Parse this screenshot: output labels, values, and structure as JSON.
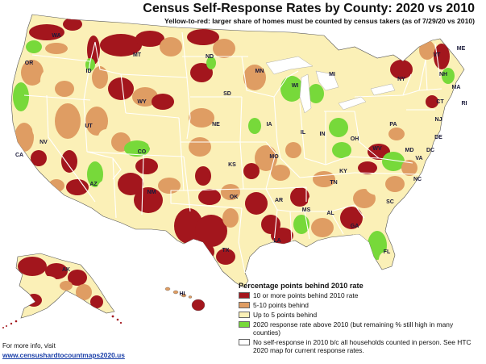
{
  "title": "Census Self-Response Rates by County: 2020 vs 2010",
  "subtitle": "Yellow-to-red: larger share of homes must be counted by census takers (as of 7/29/20 vs 2010)",
  "colors": {
    "red": "#a3161d",
    "orange": "#df9d63",
    "yellow": "#fbf0b7",
    "green": "#77d93a",
    "white": "#ffffff",
    "state_border": "#ffffff",
    "water": "#ffffff"
  },
  "legend": {
    "title": "Percentage points behind 2010 rate",
    "items": [
      {
        "color": "#a3161d",
        "label": "10 or more points behind 2010 rate"
      },
      {
        "color": "#df9d63",
        "label": "5-10 points behind"
      },
      {
        "color": "#fbf0b7",
        "label": "Up to 5 points behind"
      },
      {
        "color": "#77d93a",
        "label": "2020 response rate above 2010 (but remaining % still high in many counties)"
      },
      {
        "color": "#ffffff",
        "label": "No self-response in 2010 b/c all households counted in person. See HTC 2020 map for current response rates."
      }
    ]
  },
  "states": [
    "WA",
    "OR",
    "CA",
    "NV",
    "ID",
    "MT",
    "WY",
    "UT",
    "AZ",
    "CO",
    "NM",
    "ND",
    "SD",
    "NE",
    "KS",
    "OK",
    "TX",
    "MN",
    "IA",
    "MO",
    "AR",
    "LA",
    "WI",
    "IL",
    "MI",
    "IN",
    "OH",
    "KY",
    "TN",
    "MS",
    "AL",
    "GA",
    "FL",
    "SC",
    "NC",
    "VA",
    "WV",
    "PA",
    "NY",
    "VT",
    "NH",
    "ME",
    "MA",
    "RI",
    "CT",
    "NJ",
    "DE",
    "MD",
    "DC",
    "AK",
    "HI"
  ],
  "footer": {
    "info": "For more info, visit",
    "link": "www.censushardtocountmaps2020.us"
  }
}
